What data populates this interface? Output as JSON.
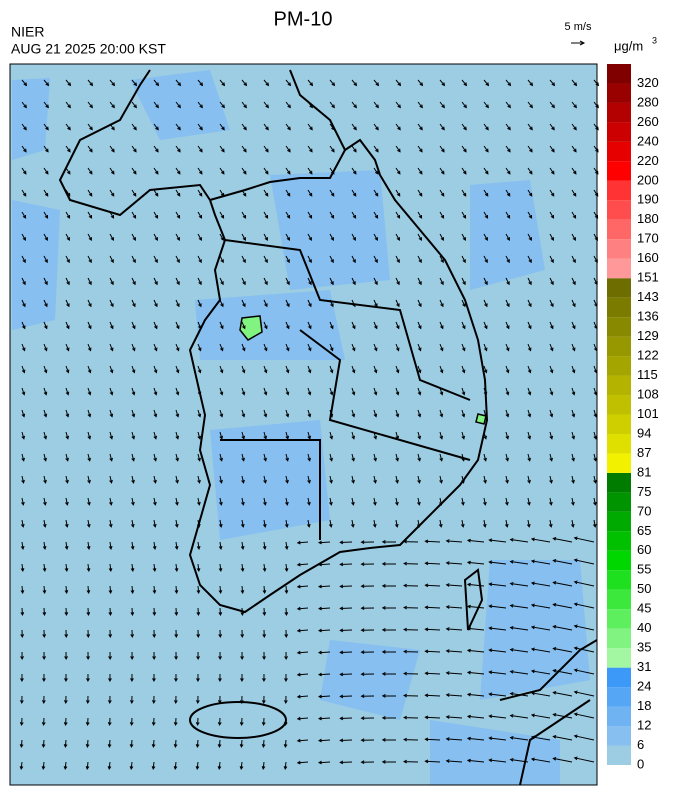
{
  "header": {
    "title": "PM-10",
    "agency": "NIER",
    "time": "AUG 21 2025 20:00 KST",
    "wind_scale": "5 m/s"
  },
  "legend": {
    "unit": "μg/m",
    "unit_sup": "3",
    "ticks": [
      0,
      6,
      12,
      18,
      24,
      31,
      35,
      40,
      45,
      50,
      55,
      60,
      65,
      70,
      75,
      81,
      87,
      94,
      101,
      108,
      115,
      122,
      129,
      136,
      143,
      151,
      160,
      170,
      180,
      190,
      200,
      220,
      240,
      260,
      280,
      320
    ],
    "colors": [
      "#9dcde3",
      "#86bff0",
      "#6fb3f2",
      "#55a6f5",
      "#3d99f7",
      "#a3f7a3",
      "#80f380",
      "#5eef5e",
      "#3de83d",
      "#1ee01e",
      "#00d600",
      "#00c000",
      "#00aa00",
      "#009400",
      "#007d00",
      "#f2f200",
      "#e0e000",
      "#cfcf00",
      "#c0c000",
      "#b3b300",
      "#a5a500",
      "#979700",
      "#898900",
      "#7b7b00",
      "#6d6d00",
      "#ff9999",
      "#ff8080",
      "#ff6666",
      "#ff4d4d",
      "#ff3333",
      "#ff0000",
      "#e60000",
      "#cc0000",
      "#b30000",
      "#990000",
      "#800000"
    ]
  }
}
